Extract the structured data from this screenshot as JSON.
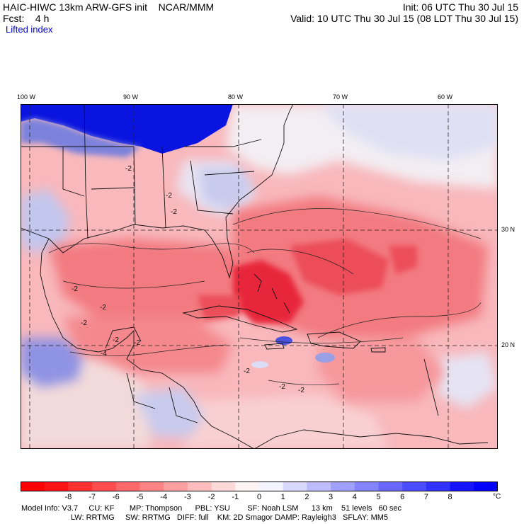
{
  "header": {
    "model": "HAIC-HIWC 13km ARW-GFS init",
    "org": "NCAR/MMM",
    "fcst_label": "Fcst:",
    "fcst_value": "4 h",
    "field": "Lifted index",
    "init": "Init: 06 UTC Thu 30 Jul 15",
    "valid": "Valid: 10 UTC Thu 30 Jul 15 (08 LDT Thu 30 Jul 15)"
  },
  "axes": {
    "lon_labels": [
      "100 W",
      "90 W",
      "80 W",
      "70 W",
      "60 W"
    ],
    "lat_labels": [
      "30 N",
      "20 N"
    ]
  },
  "map": {
    "contour_labels": [
      "-2",
      "-2",
      "-2",
      "-2",
      "-2",
      "-2",
      "-2",
      "-4",
      "-2",
      "-2",
      "-2",
      "-2"
    ],
    "colors": {
      "strong_neg": "#e8283a",
      "mid_neg": "#f06a72",
      "weak_neg": "#f7a8ab",
      "faint_neg": "#fbd6d6",
      "neutral": "#f6f0f4",
      "weak_pos": "#c5c8ee",
      "mid_pos": "#8a8ee0",
      "strong_pos": "#0a14e0"
    }
  },
  "colorbar": {
    "labels": [
      "-8",
      "-7",
      "-6",
      "-5",
      "-4",
      "-3",
      "-2",
      "-1",
      "0",
      "1",
      "2",
      "3",
      "4",
      "5",
      "6",
      "7",
      "8"
    ],
    "unit": "°C",
    "colors": [
      "#ff0000",
      "#ff1414",
      "#ff3030",
      "#ff4c4c",
      "#ff6868",
      "#ff8484",
      "#ffa0a0",
      "#ffbcbc",
      "#ffd8d8",
      "#fff4f4",
      "#f4f4ff",
      "#d8d8ff",
      "#bcbcff",
      "#a0a0ff",
      "#8484ff",
      "#6868ff",
      "#4c4cff",
      "#3030ff",
      "#1414ff",
      "#0000ff"
    ]
  },
  "footer": {
    "line1": "Model Info: V3.7     CU: KF       MP: Thompson      PBL: YSU        SF: Noah LSM      13 km    51 levels   60 sec",
    "line2": "LW: RRTMG     SW: RRTMG   DIFF: full    KM: 2D Smagor DAMP: Rayleigh3   SFLAY: MM5"
  }
}
